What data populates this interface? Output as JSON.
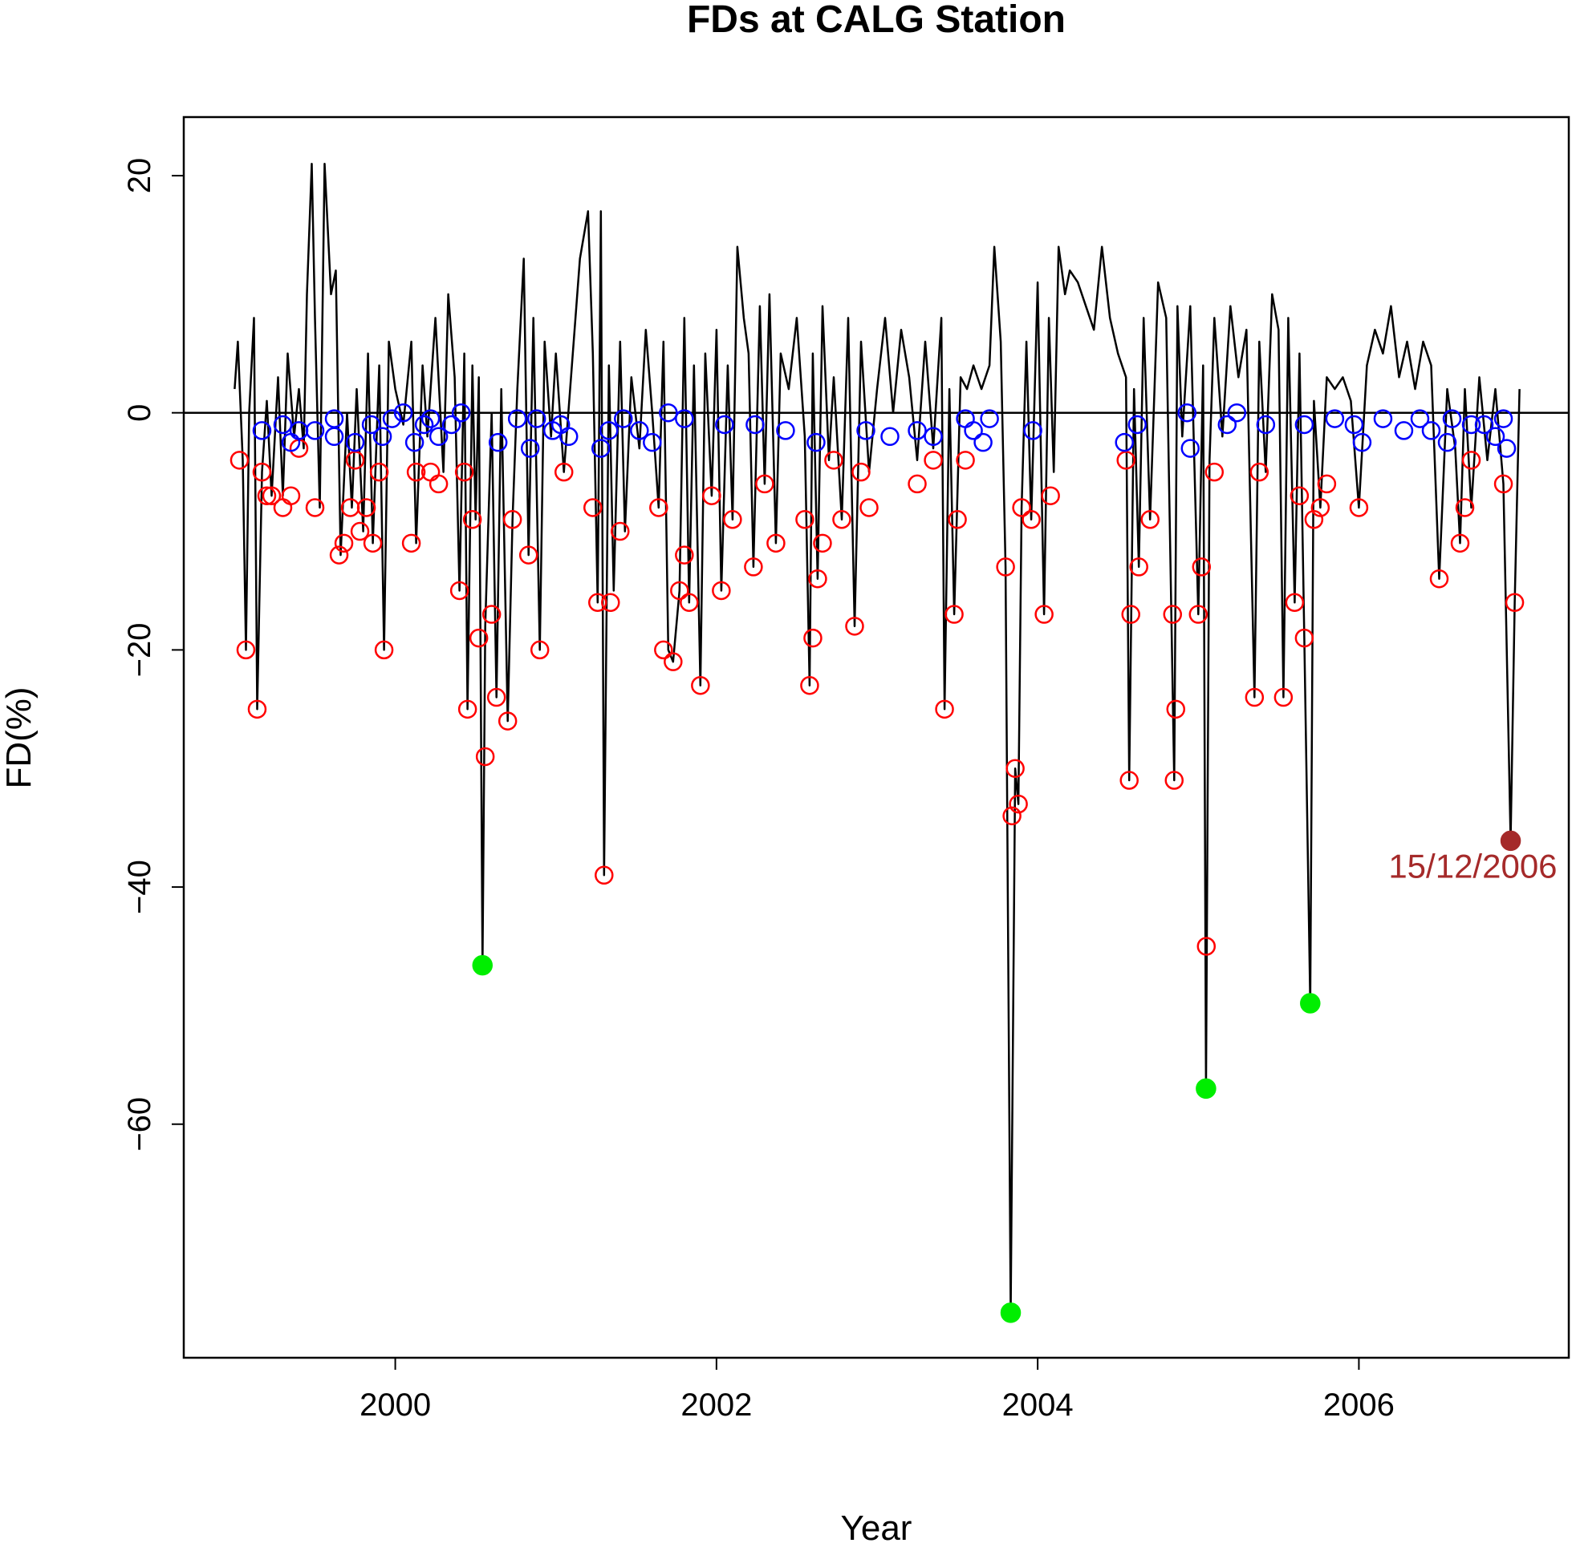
{
  "chart_data": {
    "type": "line",
    "title": "FDs at CALG Station",
    "xlabel": "Year",
    "ylabel": "FD(%)",
    "xlim": [
      1998.683,
      2007.307
    ],
    "ylim": [
      -79.7,
      24.94
    ],
    "xticks": [
      2000,
      2002,
      2004,
      2006
    ],
    "yticks": [
      {
        "value": -60,
        "label": "−60"
      },
      {
        "value": -40,
        "label": "−40"
      },
      {
        "value": -20,
        "label": "−20"
      },
      0,
      20
    ],
    "hline": 0,
    "grid": false,
    "series": [
      {
        "style": "line",
        "color": "#000000",
        "x": [
          1999.0,
          1999.02,
          1999.05,
          1999.07,
          1999.09,
          1999.12,
          1999.14,
          1999.17,
          1999.2,
          1999.23,
          1999.27,
          1999.3,
          1999.33,
          1999.37,
          1999.4,
          1999.43,
          1999.45,
          1999.48,
          1999.5,
          1999.53,
          1999.56,
          1999.6,
          1999.63,
          1999.66,
          1999.7,
          1999.73,
          1999.76,
          1999.8,
          1999.83,
          1999.86,
          1999.9,
          1999.93,
          1999.96,
          2000.0,
          2000.05,
          2000.1,
          2000.13,
          2000.17,
          2000.2,
          2000.25,
          2000.3,
          2000.33,
          2000.37,
          2000.4,
          2000.43,
          2000.45,
          2000.48,
          2000.5,
          2000.52,
          2000.543,
          2000.56,
          2000.6,
          2000.63,
          2000.66,
          2000.7,
          2000.73,
          2000.76,
          2000.8,
          2000.83,
          2000.86,
          2000.9,
          2000.93,
          2000.97,
          2001.0,
          2001.05,
          2001.1,
          2001.15,
          2001.2,
          2001.23,
          2001.26,
          2001.28,
          2001.3,
          2001.33,
          2001.36,
          2001.4,
          2001.43,
          2001.47,
          2001.52,
          2001.56,
          2001.6,
          2001.64,
          2001.67,
          2001.7,
          2001.73,
          2001.77,
          2001.8,
          2001.83,
          2001.86,
          2001.9,
          2001.93,
          2001.97,
          2002.0,
          2002.03,
          2002.07,
          2002.1,
          2002.13,
          2002.17,
          2002.2,
          2002.23,
          2002.27,
          2002.3,
          2002.33,
          2002.37,
          2002.4,
          2002.45,
          2002.5,
          2002.55,
          2002.58,
          2002.6,
          2002.63,
          2002.66,
          2002.7,
          2002.73,
          2002.78,
          2002.82,
          2002.86,
          2002.9,
          2002.95,
          2003.0,
          2003.05,
          2003.1,
          2003.15,
          2003.2,
          2003.25,
          2003.3,
          2003.35,
          2003.4,
          2003.42,
          2003.45,
          2003.48,
          2003.52,
          2003.56,
          2003.6,
          2003.65,
          2003.7,
          2003.73,
          2003.77,
          2003.8,
          2003.832,
          2003.86,
          2003.88,
          2003.9,
          2003.93,
          2003.96,
          2004.0,
          2004.04,
          2004.07,
          2004.1,
          2004.13,
          2004.17,
          2004.2,
          2004.25,
          2004.3,
          2004.35,
          2004.4,
          2004.45,
          2004.5,
          2004.55,
          2004.57,
          2004.6,
          2004.63,
          2004.66,
          2004.7,
          2004.75,
          2004.8,
          2004.85,
          2004.87,
          2004.9,
          2004.95,
          2005.0,
          2005.03,
          2005.048,
          2005.07,
          2005.1,
          2005.15,
          2005.2,
          2005.25,
          2005.3,
          2005.35,
          2005.38,
          2005.42,
          2005.46,
          2005.5,
          2005.53,
          2005.56,
          2005.6,
          2005.63,
          2005.66,
          2005.697,
          2005.72,
          2005.76,
          2005.8,
          2005.85,
          2005.9,
          2005.95,
          2006.0,
          2006.05,
          2006.1,
          2006.15,
          2006.2,
          2006.25,
          2006.3,
          2006.35,
          2006.4,
          2006.45,
          2006.5,
          2006.55,
          2006.6,
          2006.63,
          2006.66,
          2006.7,
          2006.75,
          2006.8,
          2006.85,
          2006.9,
          2006.945,
          2006.97,
          2007.0
        ],
        "values": [
          2,
          6,
          -4,
          -20,
          0,
          8,
          -25,
          -5,
          1,
          -7,
          3,
          -7,
          5,
          -2,
          2,
          -3,
          10,
          21,
          8,
          -8,
          21,
          10,
          12,
          -12,
          0,
          -8,
          2,
          -10,
          5,
          -11,
          4,
          -20,
          6,
          2,
          -1,
          6,
          -11,
          4,
          -2,
          8,
          -5,
          10,
          3,
          -15,
          5,
          -25,
          4,
          -9,
          3,
          -46.6,
          -18,
          0,
          -24,
          2,
          -26,
          -9,
          2,
          13,
          -12,
          8,
          -20,
          6,
          -2,
          5,
          -5,
          4,
          13,
          17,
          5,
          -16,
          17,
          -39,
          4,
          -15,
          6,
          -10,
          3,
          -3,
          7,
          0,
          -8,
          6,
          -20,
          -21,
          -15,
          8,
          -16,
          4,
          -23,
          5,
          -7,
          7,
          -15,
          4,
          -9,
          14,
          8,
          5,
          -13,
          9,
          -6,
          10,
          -11,
          5,
          2,
          8,
          -2,
          -23,
          5,
          -14,
          9,
          -4,
          3,
          -9,
          8,
          -18,
          6,
          -5,
          2,
          8,
          0,
          7,
          3,
          -4,
          6,
          -3,
          8,
          -25,
          2,
          -17,
          3,
          2,
          4,
          2,
          4,
          14,
          6,
          -13,
          -75.9,
          -30,
          -33,
          -8,
          6,
          -9,
          11,
          -17,
          8,
          -5,
          14,
          10,
          12,
          11,
          9,
          7,
          14,
          8,
          5,
          3,
          -31,
          2,
          -13,
          8,
          -9,
          11,
          8,
          -31,
          9,
          -2,
          9,
          -17,
          4,
          -57.0,
          -4,
          8,
          -2,
          9,
          3,
          7,
          -24,
          6,
          -5,
          10,
          7,
          -24,
          8,
          -16,
          5,
          -19,
          -49.8,
          1,
          -8,
          3,
          2,
          3,
          1,
          -8,
          4,
          7,
          5,
          9,
          3,
          6,
          2,
          6,
          4,
          -14,
          2,
          -3,
          -11,
          2,
          -8,
          3,
          -4,
          2,
          -6,
          -36.1,
          -16,
          2
        ]
      },
      {
        "style": "open-circle",
        "color": "#ff0000",
        "x": [
          1999.03,
          1999.07,
          1999.14,
          1999.17,
          1999.2,
          1999.23,
          1999.3,
          1999.35,
          1999.4,
          1999.5,
          1999.65,
          1999.68,
          1999.72,
          1999.75,
          1999.78,
          1999.82,
          1999.86,
          1999.9,
          1999.93,
          2000.1,
          2000.13,
          2000.22,
          2000.27,
          2000.4,
          2000.43,
          2000.45,
          2000.48,
          2000.52,
          2000.56,
          2000.6,
          2000.63,
          2000.7,
          2000.73,
          2000.83,
          2000.9,
          2001.05,
          2001.23,
          2001.26,
          2001.3,
          2001.34,
          2001.4,
          2001.64,
          2001.67,
          2001.73,
          2001.77,
          2001.8,
          2001.83,
          2001.9,
          2001.97,
          2002.03,
          2002.1,
          2002.23,
          2002.3,
          2002.37,
          2002.55,
          2002.58,
          2002.6,
          2002.63,
          2002.66,
          2002.73,
          2002.78,
          2002.86,
          2002.9,
          2002.95,
          2003.25,
          2003.35,
          2003.42,
          2003.48,
          2003.5,
          2003.55,
          2003.8,
          2003.86,
          2003.88,
          2003.84,
          2003.9,
          2003.96,
          2004.04,
          2004.08,
          2004.55,
          2004.57,
          2004.58,
          2004.63,
          2004.7,
          2004.85,
          2004.86,
          2004.84,
          2005.0,
          2005.02,
          2005.05,
          2005.1,
          2005.35,
          2005.38,
          2005.53,
          2005.6,
          2005.63,
          2005.66,
          2005.72,
          2005.76,
          2005.8,
          2006.0,
          2006.5,
          2006.63,
          2006.66,
          2006.7,
          2006.9,
          2006.97
        ],
        "values": [
          -4,
          -20,
          -25,
          -5,
          -7,
          -7,
          -8,
          -7,
          -3,
          -8,
          -12,
          -11,
          -8,
          -4,
          -10,
          -8,
          -11,
          -5,
          -20,
          -11,
          -5,
          -5,
          -6,
          -15,
          -5,
          -25,
          -9,
          -19,
          -29,
          -17,
          -24,
          -26,
          -9,
          -12,
          -20,
          -5,
          -8,
          -16,
          -39,
          -16,
          -10,
          -8,
          -20,
          -21,
          -15,
          -12,
          -16,
          -23,
          -7,
          -15,
          -9,
          -13,
          -6,
          -11,
          -9,
          -23,
          -19,
          -14,
          -11,
          -4,
          -9,
          -18,
          -5,
          -8,
          -6,
          -4,
          -25,
          -17,
          -9,
          -4,
          -13,
          -30,
          -33,
          -34,
          -8,
          -9,
          -17,
          -7,
          -4,
          -31,
          -17,
          -13,
          -9,
          -31,
          -25,
          -17,
          -17,
          -13,
          -45,
          -5,
          -24,
          -5,
          -24,
          -16,
          -7,
          -19,
          -9,
          -8,
          -6,
          -8,
          -14,
          -11,
          -8,
          -4,
          -6,
          -16
        ]
      },
      {
        "style": "open-circle",
        "color": "#0000ff",
        "x": [
          1999.17,
          1999.3,
          1999.35,
          1999.4,
          1999.5,
          1999.62,
          1999.62,
          1999.75,
          1999.85,
          1999.92,
          1999.98,
          2000.05,
          2000.12,
          2000.18,
          2000.22,
          2000.27,
          2000.35,
          2000.41,
          2000.64,
          2000.76,
          2000.84,
          2000.88,
          2000.98,
          2001.03,
          2001.08,
          2001.28,
          2001.33,
          2001.42,
          2001.52,
          2001.6,
          2001.7,
          2001.8,
          2002.05,
          2002.24,
          2002.43,
          2002.62,
          2002.93,
          2003.08,
          2003.25,
          2003.35,
          2003.55,
          2003.6,
          2003.66,
          2003.7,
          2003.97,
          2004.54,
          2004.62,
          2004.93,
          2004.95,
          2005.18,
          2005.24,
          2005.42,
          2005.66,
          2005.85,
          2005.97,
          2006.02,
          2006.15,
          2006.28,
          2006.38,
          2006.45,
          2006.55,
          2006.58,
          2006.7,
          2006.78,
          2006.85,
          2006.9,
          2006.92
        ],
        "values": [
          -1.5,
          -1,
          -2.5,
          -1.5,
          -1.5,
          -0.5,
          -2,
          -2.5,
          -1,
          -2,
          -0.5,
          0,
          -2.5,
          -1,
          -0.5,
          -2,
          -1,
          0,
          -2.5,
          -0.5,
          -3,
          -0.5,
          -1.5,
          -1,
          -2,
          -3,
          -1.5,
          -0.5,
          -1.5,
          -2.5,
          0,
          -0.5,
          -1,
          -1,
          -1.5,
          -2.5,
          -1.5,
          -2,
          -1.5,
          -2,
          -0.5,
          -1.5,
          -2.5,
          -0.5,
          -1.5,
          -2.5,
          -1,
          0,
          -3,
          -1,
          0,
          -1,
          -1,
          -0.5,
          -1,
          -2.5,
          -0.5,
          -1.5,
          -0.5,
          -1.5,
          -2.5,
          -0.5,
          -1,
          -1,
          -2,
          -0.5,
          -3
        ]
      },
      {
        "style": "filled-circle",
        "color": "#00ee00",
        "x": [
          2000.543,
          2003.832,
          2005.048,
          2005.697
        ],
        "values": [
          -46.6,
          -75.9,
          -57.0,
          -49.8
        ]
      },
      {
        "style": "filled-circle",
        "color": "#a52a2a",
        "x": [
          2006.945
        ],
        "values": [
          -36.1
        ],
        "annotation": "15/12/2006"
      }
    ]
  }
}
